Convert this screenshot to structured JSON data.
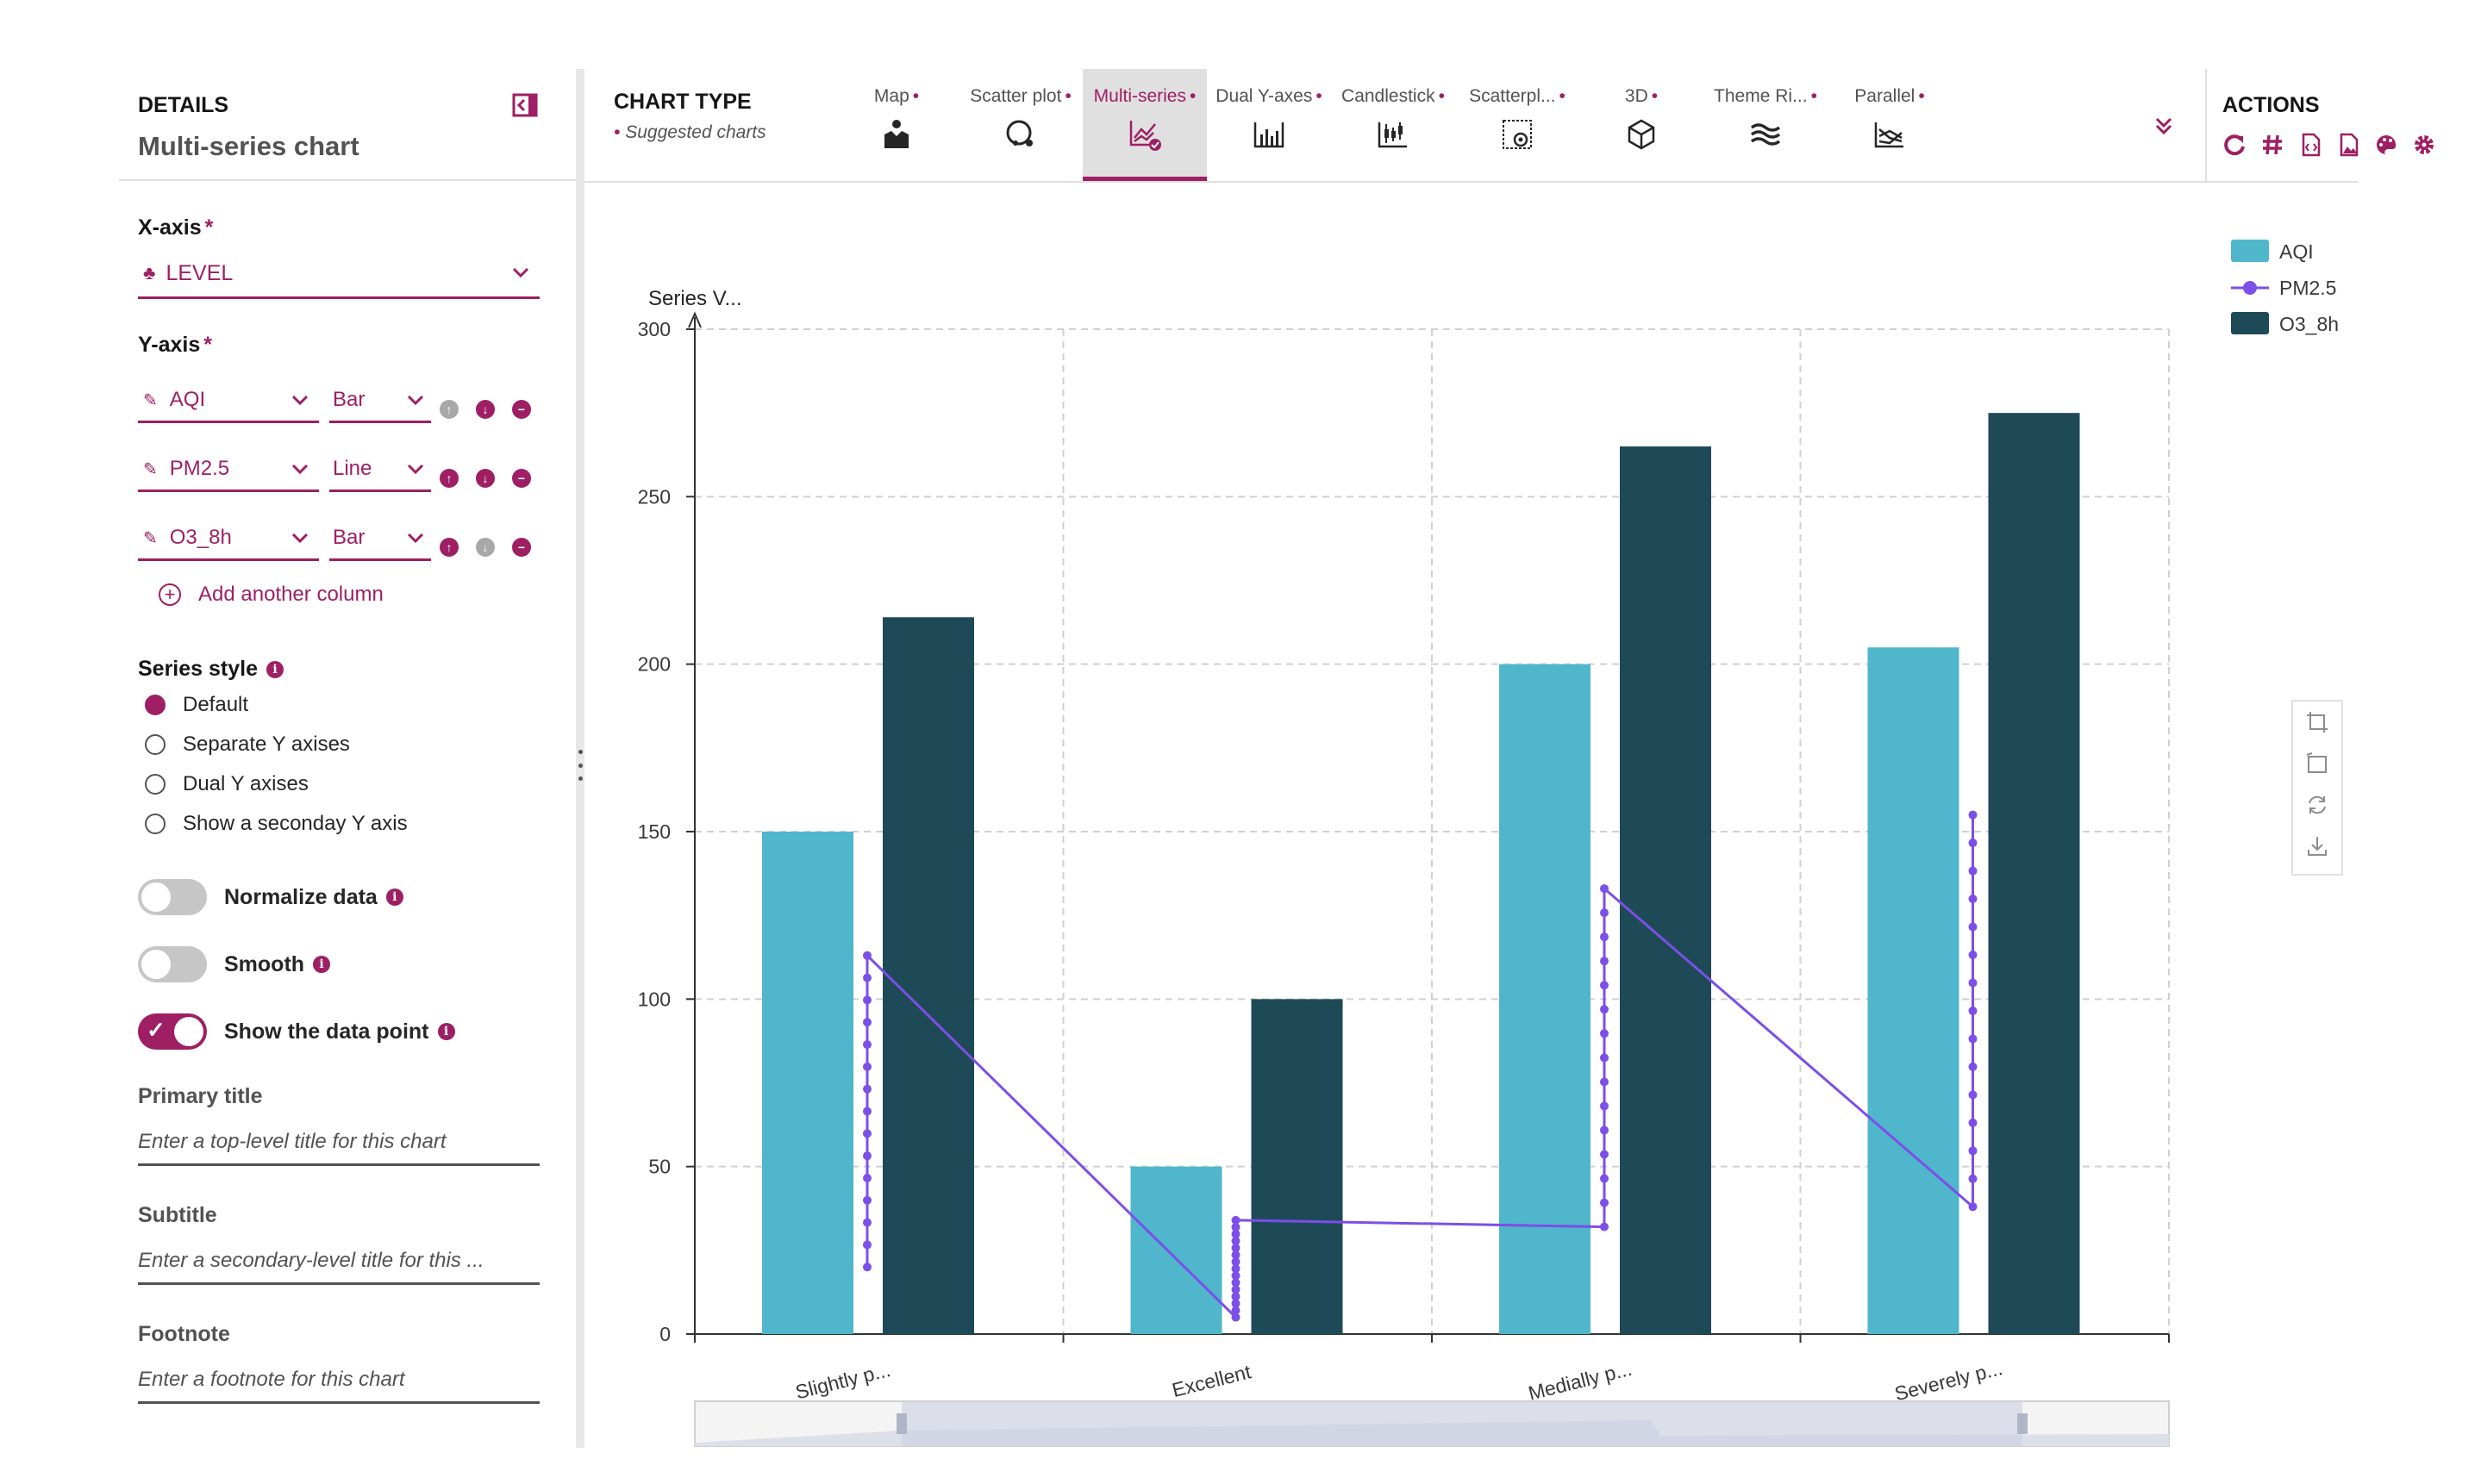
{
  "details": {
    "heading": "DETAILS",
    "subheading": "Multi-series chart",
    "x_axis_label": "X-axis",
    "x_axis_value": "LEVEL",
    "y_axis_label": "Y-axis",
    "y_columns": [
      {
        "column": "AQI",
        "type": "Bar"
      },
      {
        "column": "PM2.5",
        "type": "Line"
      },
      {
        "column": "O3_8h",
        "type": "Bar"
      }
    ],
    "add_column": "Add another column",
    "series_style_label": "Series style",
    "series_styles": [
      "Default",
      "Separate Y axises",
      "Dual Y axises",
      "Show a seconday Y axis"
    ],
    "selected_style": "Default",
    "normalize_label": "Normalize data",
    "smooth_label": "Smooth",
    "show_points_label": "Show the data point",
    "normalize_on": false,
    "smooth_on": false,
    "show_points_on": true,
    "primary_title_label": "Primary title",
    "primary_title_placeholder": "Enter a top-level title for this chart",
    "subtitle_label": "Subtitle",
    "subtitle_placeholder": "Enter a secondary-level title for this ...",
    "footnote_label": "Footnote",
    "footnote_placeholder": "Enter a footnote for this chart"
  },
  "toolbar": {
    "chart_type_title": "CHART TYPE",
    "suggested": "Suggested charts",
    "chart_types": [
      {
        "label": "Map",
        "icon": "map-icon"
      },
      {
        "label": "Scatter plot",
        "icon": "scatter-plot-icon"
      },
      {
        "label": "Multi-series",
        "icon": "multi-series-icon"
      },
      {
        "label": "Dual Y-axes",
        "icon": "dual-y-axes-icon"
      },
      {
        "label": "Candlestick",
        "icon": "candlestick-icon"
      },
      {
        "label": "Scatterpl...",
        "icon": "scatterplot-matrix-icon"
      },
      {
        "label": "3D",
        "icon": "3d-icon"
      },
      {
        "label": "Theme Ri...",
        "icon": "theme-river-icon"
      },
      {
        "label": "Parallel",
        "icon": "parallel-icon"
      }
    ],
    "active_chart_type": "Multi-series",
    "actions_title": "ACTIONS",
    "action_icons": [
      "refresh-icon",
      "hash-icon",
      "code-file-icon",
      "image-file-icon",
      "palette-icon",
      "settings-icon"
    ]
  },
  "colors": {
    "accent": "#9e1f63",
    "aqi": "#4fb6cb",
    "pm25": "#7b4fe8",
    "o3": "#1e4a57"
  },
  "chart_data": {
    "type": "bar",
    "ylabel": "Series V...",
    "xlabel": "LEVEL",
    "ylim": [
      0,
      300
    ],
    "yticks": [
      0,
      50,
      100,
      150,
      200,
      250,
      300
    ],
    "categories": [
      "Slightly p...",
      "Excellent",
      "Medially p...",
      "Severely p..."
    ],
    "series": [
      {
        "name": "AQI",
        "type": "bar",
        "values": [
          150,
          50,
          200,
          205
        ]
      },
      {
        "name": "PM2.5",
        "type": "line",
        "values": [
          [
            113,
            20
          ],
          [
            34,
            5
          ],
          [
            133,
            32
          ],
          [
            155,
            38
          ]
        ]
      },
      {
        "name": "O3_8h",
        "type": "bar",
        "values": [
          214,
          100,
          265,
          275
        ]
      }
    ],
    "legend": "top-right",
    "grid": true
  }
}
